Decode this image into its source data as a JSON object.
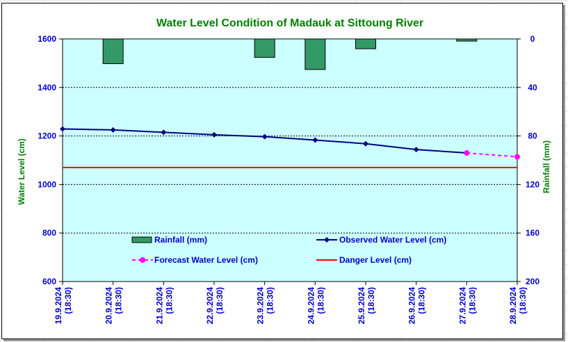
{
  "chart_data": {
    "type": "bar+line",
    "title": "Water Level Condition of Madauk at Sittoung River",
    "ylabel_left": "Water Level (cm)",
    "ylabel_right": "Rainfall (mm)",
    "ylim_left": [
      600,
      1600
    ],
    "yticks_left": [
      "600",
      "800",
      "1000",
      "1200",
      "1400",
      "1600"
    ],
    "ylim_right": [
      0,
      200
    ],
    "right_axis_inverted": true,
    "yticks_right": [
      "0",
      "40",
      "80",
      "120",
      "160",
      "200"
    ],
    "categories": [
      "19.9.2024 (18:30)",
      "20.9.2024 (18:30)",
      "21.9.2024 (18:30)",
      "22.9.2024 (18:30)",
      "23.9.2024 (18:30)",
      "24.9.2024 (18:30)",
      "25.9.2024 (18:30)",
      "26.9.2024 (18:30)",
      "27.9.2024 (18:30)",
      "28.9.2024 (18:30)"
    ],
    "x_labels": [
      {
        "date": "19.9.2024",
        "time": "(18:30)"
      },
      {
        "date": "20.9.2024",
        "time": "(18:30)"
      },
      {
        "date": "21.9.2024",
        "time": "(18:30)"
      },
      {
        "date": "22.9.2024",
        "time": "(18:30)"
      },
      {
        "date": "23.9.2024",
        "time": "(18:30)"
      },
      {
        "date": "24.9.2024",
        "time": "(18:30)"
      },
      {
        "date": "25.9.2024",
        "time": "(18:30)"
      },
      {
        "date": "26.9.2024",
        "time": "(18:30)"
      },
      {
        "date": "27.9.2024",
        "time": "(18:30)"
      },
      {
        "date": "28.9.2024",
        "time": "(18:30)"
      }
    ],
    "series": [
      {
        "name": "Rainfall (mm)",
        "kind": "bar",
        "axis": "right",
        "color": "#339966",
        "values": [
          null,
          20.4,
          0,
          0,
          15.2,
          25.2,
          8.1,
          0,
          1.8,
          null
        ]
      },
      {
        "name": "Observed Water Level (cm)",
        "kind": "line",
        "axis": "left",
        "color": "#000080",
        "values": [
          1229,
          1225,
          1215,
          1205,
          1197,
          1183,
          1168,
          1144,
          1130,
          null
        ]
      },
      {
        "name": "Forecast Water Level (cm)",
        "kind": "dashed-line",
        "axis": "left",
        "color": "#ff00ff",
        "values": [
          null,
          null,
          null,
          null,
          null,
          null,
          null,
          null,
          1130,
          1114
        ]
      },
      {
        "name": "Danger Level (cm)",
        "kind": "line",
        "axis": "left",
        "color": "#ff0000",
        "value": 1070
      }
    ],
    "grid": "horizontal dotted",
    "legend": "inside-bottom",
    "colors": {
      "plot_background": "#ccffff",
      "title": "#008000",
      "axis_titles": "#008000",
      "tick_labels": "#0000cc"
    }
  }
}
